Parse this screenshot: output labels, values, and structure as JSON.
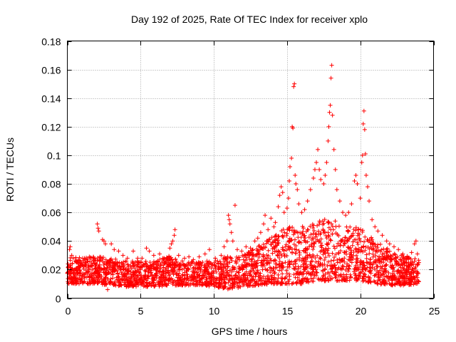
{
  "chart_data": {
    "type": "scatter",
    "title": "Day 192 of 2025, Rate Of TEC Index for receiver xplo",
    "xlabel": "GPS time / hours",
    "ylabel": "ROTI / TECUs",
    "xlim": [
      0,
      25
    ],
    "ylim": [
      0,
      0.18
    ],
    "xticks": [
      "0",
      "5",
      "10",
      "15",
      "20",
      "25"
    ],
    "yticks": [
      "0",
      "0.02",
      "0.04",
      "0.06",
      "0.08",
      "0.1",
      "0.12",
      "0.14",
      "0.16",
      "0.18"
    ],
    "grid": true,
    "marker": "+",
    "color": "#ff0000",
    "series": [
      {
        "points": [
          [
            0.05,
            0.024
          ],
          [
            0.15,
            0.034
          ],
          [
            0.2,
            0.036
          ],
          [
            0.3,
            0.03
          ],
          [
            0.4,
            0.028
          ],
          [
            0.6,
            0.026
          ],
          [
            0.9,
            0.025
          ],
          [
            1.2,
            0.027
          ],
          [
            1.5,
            0.029
          ],
          [
            1.8,
            0.028
          ],
          [
            2.05,
            0.052
          ],
          [
            2.1,
            0.049
          ],
          [
            2.15,
            0.047
          ],
          [
            2.4,
            0.041
          ],
          [
            2.5,
            0.04
          ],
          [
            2.6,
            0.038
          ],
          [
            2.75,
            0.006
          ],
          [
            3.0,
            0.038
          ],
          [
            3.2,
            0.034
          ],
          [
            3.5,
            0.033
          ],
          [
            3.8,
            0.03
          ],
          [
            4.1,
            0.028
          ],
          [
            4.5,
            0.033
          ],
          [
            4.8,
            0.028
          ],
          [
            5.1,
            0.028
          ],
          [
            5.4,
            0.035
          ],
          [
            5.6,
            0.033
          ],
          [
            5.9,
            0.03
          ],
          [
            6.3,
            0.031
          ],
          [
            6.6,
            0.028
          ],
          [
            7.0,
            0.035
          ],
          [
            7.1,
            0.038
          ],
          [
            7.2,
            0.04
          ],
          [
            7.3,
            0.044
          ],
          [
            7.35,
            0.048
          ],
          [
            7.6,
            0.03
          ],
          [
            8.0,
            0.028
          ],
          [
            8.3,
            0.029
          ],
          [
            8.6,
            0.027
          ],
          [
            9.0,
            0.029
          ],
          [
            9.4,
            0.031
          ],
          [
            9.7,
            0.034
          ],
          [
            10.1,
            0.028
          ],
          [
            10.5,
            0.03
          ],
          [
            10.7,
            0.036
          ],
          [
            10.9,
            0.04
          ],
          [
            11.0,
            0.058
          ],
          [
            11.05,
            0.055
          ],
          [
            11.1,
            0.052
          ],
          [
            11.2,
            0.046
          ],
          [
            11.3,
            0.04
          ],
          [
            11.45,
            0.065
          ],
          [
            11.6,
            0.034
          ],
          [
            11.9,
            0.033
          ],
          [
            12.2,
            0.036
          ],
          [
            12.5,
            0.035
          ],
          [
            12.8,
            0.04
          ],
          [
            13.0,
            0.042
          ],
          [
            13.2,
            0.046
          ],
          [
            13.4,
            0.052
          ],
          [
            13.5,
            0.058
          ],
          [
            13.7,
            0.048
          ],
          [
            13.9,
            0.056
          ],
          [
            14.1,
            0.05
          ],
          [
            14.2,
            0.053
          ],
          [
            14.4,
            0.064
          ],
          [
            14.5,
            0.072
          ],
          [
            14.6,
            0.078
          ],
          [
            14.7,
            0.074
          ],
          [
            14.8,
            0.06
          ],
          [
            15.0,
            0.063
          ],
          [
            15.1,
            0.07
          ],
          [
            15.15,
            0.082
          ],
          [
            15.2,
            0.092
          ],
          [
            15.3,
            0.098
          ],
          [
            15.35,
            0.12
          ],
          [
            15.4,
            0.119
          ],
          [
            15.45,
            0.148
          ],
          [
            15.5,
            0.15
          ],
          [
            15.55,
            0.086
          ],
          [
            15.6,
            0.08
          ],
          [
            15.7,
            0.076
          ],
          [
            15.8,
            0.066
          ],
          [
            16.0,
            0.06
          ],
          [
            16.2,
            0.062
          ],
          [
            16.4,
            0.068
          ],
          [
            16.6,
            0.076
          ],
          [
            16.8,
            0.084
          ],
          [
            16.9,
            0.09
          ],
          [
            17.0,
            0.095
          ],
          [
            17.1,
            0.104
          ],
          [
            17.2,
            0.09
          ],
          [
            17.3,
            0.083
          ],
          [
            17.5,
            0.08
          ],
          [
            17.6,
            0.086
          ],
          [
            17.7,
            0.095
          ],
          [
            17.8,
            0.11
          ],
          [
            17.85,
            0.12
          ],
          [
            17.9,
            0.13
          ],
          [
            17.95,
            0.135
          ],
          [
            18.0,
            0.154
          ],
          [
            18.05,
            0.163
          ],
          [
            18.1,
            0.128
          ],
          [
            18.2,
            0.104
          ],
          [
            18.3,
            0.09
          ],
          [
            18.4,
            0.076
          ],
          [
            18.6,
            0.068
          ],
          [
            18.8,
            0.06
          ],
          [
            19.0,
            0.058
          ],
          [
            19.2,
            0.06
          ],
          [
            19.4,
            0.066
          ],
          [
            19.6,
            0.082
          ],
          [
            19.7,
            0.086
          ],
          [
            19.8,
            0.08
          ],
          [
            20.0,
            0.07
          ],
          [
            20.1,
            0.095
          ],
          [
            20.15,
            0.1
          ],
          [
            20.2,
            0.122
          ],
          [
            20.25,
            0.131
          ],
          [
            20.3,
            0.118
          ],
          [
            20.35,
            0.101
          ],
          [
            20.4,
            0.086
          ],
          [
            20.5,
            0.078
          ],
          [
            20.6,
            0.068
          ],
          [
            20.8,
            0.055
          ],
          [
            21.0,
            0.05
          ],
          [
            21.2,
            0.047
          ],
          [
            21.5,
            0.044
          ],
          [
            21.8,
            0.04
          ],
          [
            22.0,
            0.038
          ],
          [
            22.3,
            0.036
          ],
          [
            22.6,
            0.034
          ],
          [
            22.9,
            0.031
          ],
          [
            23.2,
            0.029
          ],
          [
            23.5,
            0.032
          ],
          [
            23.7,
            0.038
          ],
          [
            23.8,
            0.04
          ],
          [
            23.9,
            0.031
          ],
          [
            24.0,
            0.025
          ]
        ]
      }
    ],
    "envelope": {
      "x": [
        0,
        1,
        2,
        3,
        4,
        5,
        6,
        7,
        8,
        9,
        10,
        11,
        12,
        13,
        14,
        15,
        16,
        17,
        18,
        19,
        20,
        21,
        22,
        23,
        24
      ],
      "upper": [
        0.03,
        0.028,
        0.03,
        0.028,
        0.026,
        0.026,
        0.026,
        0.03,
        0.026,
        0.026,
        0.026,
        0.03,
        0.03,
        0.036,
        0.044,
        0.05,
        0.05,
        0.054,
        0.056,
        0.05,
        0.05,
        0.04,
        0.034,
        0.03,
        0.028
      ],
      "lower": [
        0.01,
        0.01,
        0.01,
        0.009,
        0.008,
        0.008,
        0.008,
        0.009,
        0.009,
        0.009,
        0.008,
        0.006,
        0.008,
        0.009,
        0.01,
        0.01,
        0.01,
        0.012,
        0.012,
        0.012,
        0.012,
        0.01,
        0.009,
        0.009,
        0.01
      ]
    }
  }
}
